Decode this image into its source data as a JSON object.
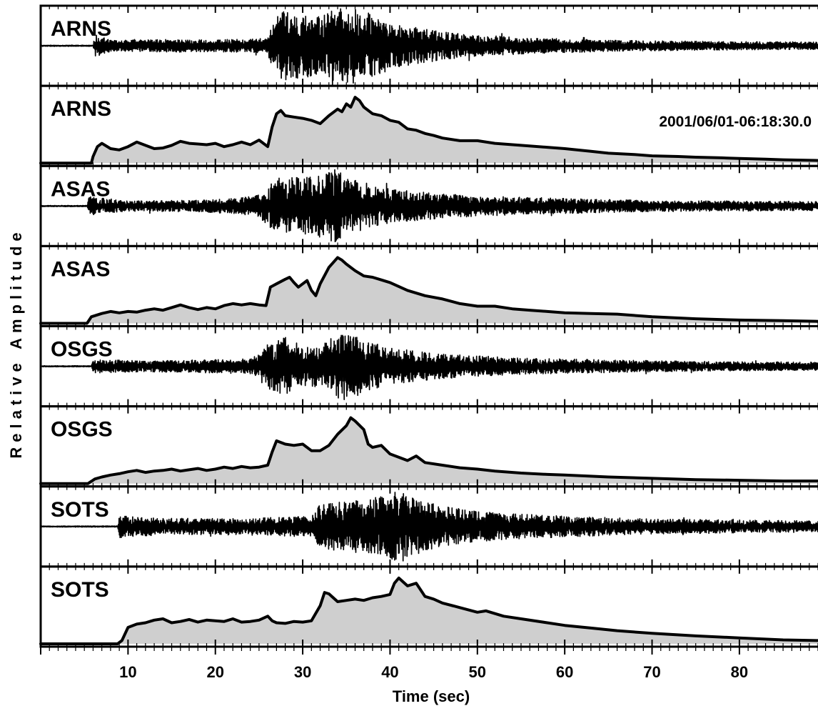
{
  "chart_data": {
    "type": "line",
    "xlabel": "Time (sec)",
    "ylabel": "Relative Amplitude",
    "xlim": [
      0,
      89
    ],
    "x_ticks": [
      10,
      20,
      30,
      40,
      50,
      60,
      70,
      80
    ],
    "x_minor_step": 1,
    "annotation": "2001/06/01-06:18:30.0",
    "colors": {
      "trace": "#000000",
      "envelope_fill": "#cfcfcf",
      "frame": "#000000"
    },
    "panels": [
      {
        "label": "ARNS",
        "kind": "waveform",
        "onset": 6,
        "seed": 11,
        "amplitude_profile": [
          [
            0,
            0
          ],
          [
            6,
            0
          ],
          [
            6.2,
            0.3
          ],
          [
            8,
            0.15
          ],
          [
            12,
            0.16
          ],
          [
            16,
            0.17
          ],
          [
            20,
            0.16
          ],
          [
            24,
            0.18
          ],
          [
            26,
            0.2
          ],
          [
            26.5,
            0.7
          ],
          [
            28,
            0.95
          ],
          [
            30,
            0.85
          ],
          [
            32,
            0.8
          ],
          [
            34,
            1.0
          ],
          [
            36,
            1.0
          ],
          [
            38,
            0.85
          ],
          [
            40,
            0.6
          ],
          [
            44,
            0.45
          ],
          [
            48,
            0.32
          ],
          [
            55,
            0.22
          ],
          [
            65,
            0.15
          ],
          [
            75,
            0.12
          ],
          [
            89,
            0.1
          ]
        ]
      },
      {
        "label": "ARNS",
        "kind": "envelope",
        "x": [
          0,
          5.8,
          6.0,
          6.5,
          7,
          8,
          9,
          10,
          11,
          12,
          13,
          14,
          15,
          16,
          17,
          18,
          19,
          20,
          21,
          22,
          23,
          24,
          25,
          26,
          26.5,
          27,
          27.5,
          28,
          29,
          30,
          31,
          32,
          33,
          34,
          34.5,
          35,
          35.5,
          36,
          36.5,
          37,
          38,
          39,
          40,
          41,
          42,
          43,
          44,
          45,
          46,
          48,
          50,
          52,
          55,
          58,
          60,
          63,
          65,
          68,
          70,
          73,
          75,
          78,
          80,
          83,
          85,
          89
        ],
        "y": [
          0,
          0,
          0.1,
          0.25,
          0.3,
          0.22,
          0.2,
          0.25,
          0.32,
          0.27,
          0.22,
          0.23,
          0.27,
          0.33,
          0.3,
          0.29,
          0.28,
          0.3,
          0.25,
          0.28,
          0.32,
          0.28,
          0.35,
          0.25,
          0.55,
          0.75,
          0.8,
          0.72,
          0.7,
          0.68,
          0.65,
          0.6,
          0.72,
          0.82,
          0.78,
          0.9,
          0.85,
          1.0,
          0.95,
          0.85,
          0.75,
          0.72,
          0.65,
          0.62,
          0.52,
          0.5,
          0.45,
          0.42,
          0.38,
          0.34,
          0.34,
          0.3,
          0.27,
          0.24,
          0.22,
          0.18,
          0.15,
          0.13,
          0.11,
          0.1,
          0.09,
          0.08,
          0.07,
          0.06,
          0.05,
          0.04
        ]
      },
      {
        "label": "ASAS",
        "kind": "waveform",
        "onset": 5.3,
        "seed": 23,
        "amplitude_profile": [
          [
            0,
            0
          ],
          [
            5.3,
            0
          ],
          [
            5.5,
            0.25
          ],
          [
            10,
            0.14
          ],
          [
            16,
            0.15
          ],
          [
            22,
            0.2
          ],
          [
            25,
            0.3
          ],
          [
            26,
            0.55
          ],
          [
            28,
            0.8
          ],
          [
            30,
            0.75
          ],
          [
            32,
            0.85
          ],
          [
            34,
            1.0
          ],
          [
            36,
            0.7
          ],
          [
            40,
            0.45
          ],
          [
            45,
            0.35
          ],
          [
            50,
            0.27
          ],
          [
            60,
            0.2
          ],
          [
            70,
            0.15
          ],
          [
            89,
            0.12
          ]
        ]
      },
      {
        "label": "ASAS",
        "kind": "envelope",
        "x": [
          0,
          5.3,
          5.8,
          7,
          8,
          9,
          10,
          11,
          12,
          13,
          14,
          15,
          16,
          17,
          18,
          19,
          20,
          21,
          22,
          23,
          24,
          25,
          25.8,
          26.3,
          27,
          28,
          28.5,
          29,
          29.5,
          30,
          30.5,
          31,
          31.5,
          32,
          33,
          34,
          34.5,
          35,
          36,
          37,
          38,
          39,
          40,
          42,
          44,
          46,
          48,
          50,
          52,
          54,
          56,
          58,
          60,
          63,
          66,
          70,
          75,
          80,
          85,
          89
        ],
        "y": [
          0,
          0,
          0.1,
          0.15,
          0.18,
          0.16,
          0.18,
          0.17,
          0.2,
          0.22,
          0.2,
          0.24,
          0.28,
          0.24,
          0.21,
          0.24,
          0.22,
          0.27,
          0.3,
          0.28,
          0.3,
          0.28,
          0.27,
          0.55,
          0.6,
          0.67,
          0.7,
          0.62,
          0.55,
          0.6,
          0.65,
          0.5,
          0.42,
          0.6,
          0.85,
          1.0,
          0.96,
          0.9,
          0.8,
          0.72,
          0.7,
          0.66,
          0.62,
          0.5,
          0.42,
          0.37,
          0.3,
          0.26,
          0.26,
          0.22,
          0.2,
          0.18,
          0.16,
          0.15,
          0.14,
          0.1,
          0.07,
          0.05,
          0.04,
          0.03
        ]
      },
      {
        "label": "OSGS",
        "kind": "waveform",
        "onset": 5.8,
        "seed": 37,
        "amplitude_profile": [
          [
            0,
            0
          ],
          [
            5.8,
            0
          ],
          [
            6,
            0.18
          ],
          [
            12,
            0.15
          ],
          [
            18,
            0.17
          ],
          [
            24,
            0.2
          ],
          [
            26,
            0.6
          ],
          [
            28,
            0.8
          ],
          [
            30,
            0.6
          ],
          [
            32,
            0.55
          ],
          [
            34,
            0.85
          ],
          [
            35,
            1.0
          ],
          [
            37,
            0.7
          ],
          [
            40,
            0.5
          ],
          [
            45,
            0.35
          ],
          [
            55,
            0.22
          ],
          [
            65,
            0.17
          ],
          [
            75,
            0.13
          ],
          [
            89,
            0.11
          ]
        ]
      },
      {
        "label": "OSGS",
        "kind": "envelope",
        "x": [
          0,
          5.4,
          6.2,
          7,
          8,
          9,
          10,
          11,
          12,
          13,
          14,
          15,
          16,
          17,
          18,
          19,
          20,
          21,
          22,
          23,
          24,
          25,
          26,
          26.5,
          27,
          28,
          29,
          30,
          31,
          32,
          33,
          34,
          35,
          35.5,
          36,
          37,
          37.5,
          38,
          39,
          40,
          41,
          42,
          43,
          44,
          46,
          48,
          50,
          52,
          55,
          58,
          60,
          65,
          70,
          75,
          80,
          85,
          89
        ],
        "y": [
          0,
          0,
          0.07,
          0.1,
          0.13,
          0.15,
          0.18,
          0.2,
          0.17,
          0.19,
          0.2,
          0.22,
          0.19,
          0.21,
          0.23,
          0.2,
          0.22,
          0.25,
          0.23,
          0.26,
          0.24,
          0.25,
          0.28,
          0.48,
          0.65,
          0.6,
          0.58,
          0.6,
          0.5,
          0.5,
          0.58,
          0.75,
          0.88,
          1.0,
          0.95,
          0.82,
          0.6,
          0.55,
          0.58,
          0.45,
          0.4,
          0.35,
          0.42,
          0.32,
          0.28,
          0.24,
          0.22,
          0.19,
          0.16,
          0.14,
          0.13,
          0.1,
          0.08,
          0.06,
          0.05,
          0.04,
          0.04
        ]
      },
      {
        "label": "SOTS",
        "kind": "waveform",
        "onset": 8.8,
        "seed": 53,
        "amplitude_profile": [
          [
            0,
            0
          ],
          [
            8.8,
            0
          ],
          [
            9,
            0.3
          ],
          [
            14,
            0.22
          ],
          [
            20,
            0.22
          ],
          [
            26,
            0.24
          ],
          [
            31,
            0.28
          ],
          [
            32,
            0.6
          ],
          [
            36,
            0.7
          ],
          [
            40,
            0.85
          ],
          [
            41,
            1.0
          ],
          [
            43,
            0.75
          ],
          [
            46,
            0.55
          ],
          [
            50,
            0.4
          ],
          [
            60,
            0.28
          ],
          [
            70,
            0.2
          ],
          [
            89,
            0.15
          ]
        ]
      },
      {
        "label": "SOTS",
        "kind": "envelope",
        "x": [
          0,
          8.8,
          9.3,
          10,
          11,
          12,
          13,
          14,
          15,
          16,
          17,
          18,
          19,
          20,
          21,
          22,
          23,
          24,
          25,
          26,
          26.5,
          27,
          28,
          29,
          30,
          31,
          32,
          32.5,
          33,
          34,
          35,
          36,
          37,
          38,
          39,
          40,
          40.5,
          41,
          42,
          43,
          43.5,
          44,
          45,
          46,
          48,
          50,
          51,
          53,
          55,
          58,
          60,
          63,
          66,
          70,
          75,
          80,
          85,
          89
        ],
        "y": [
          0,
          0,
          0.05,
          0.25,
          0.3,
          0.32,
          0.36,
          0.38,
          0.32,
          0.34,
          0.37,
          0.33,
          0.36,
          0.35,
          0.34,
          0.38,
          0.33,
          0.34,
          0.36,
          0.42,
          0.35,
          0.32,
          0.31,
          0.34,
          0.33,
          0.35,
          0.58,
          0.78,
          0.76,
          0.64,
          0.66,
          0.68,
          0.66,
          0.7,
          0.72,
          0.75,
          0.92,
          1.0,
          0.88,
          0.92,
          0.82,
          0.72,
          0.68,
          0.62,
          0.55,
          0.48,
          0.5,
          0.42,
          0.38,
          0.32,
          0.28,
          0.24,
          0.2,
          0.16,
          0.12,
          0.09,
          0.06,
          0.05
        ]
      }
    ]
  }
}
